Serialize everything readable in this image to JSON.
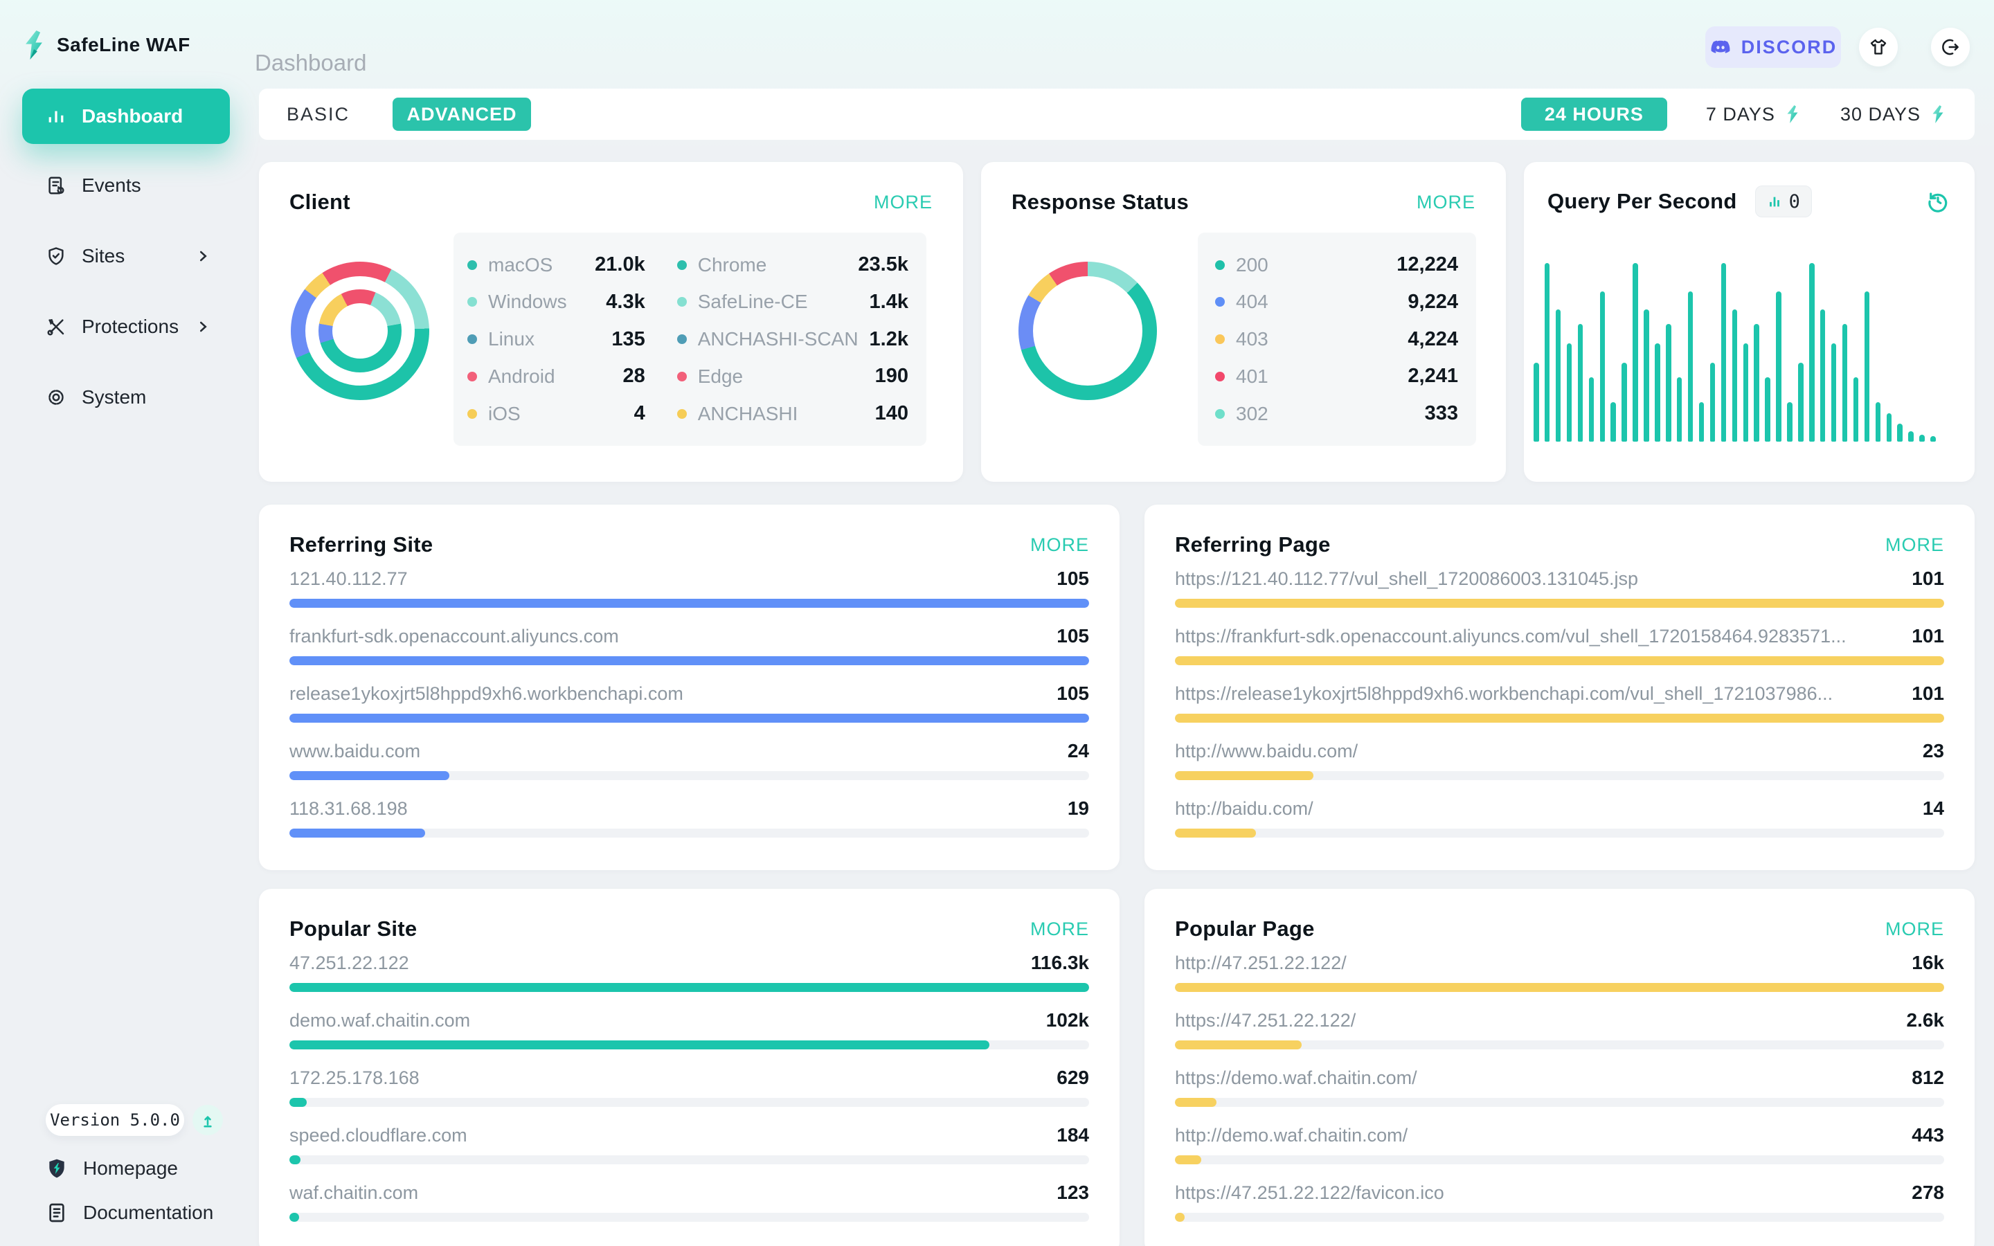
{
  "app": {
    "brand": "SafeLine WAF",
    "breadcrumb": "Dashboard",
    "discord_label": "DISCORD",
    "version": "Version 5.0.0"
  },
  "sidebar": {
    "items": [
      {
        "label": "Dashboard"
      },
      {
        "label": "Events"
      },
      {
        "label": "Sites"
      },
      {
        "label": "Protections"
      },
      {
        "label": "System"
      }
    ],
    "footer": [
      {
        "label": "Homepage"
      },
      {
        "label": "Documentation"
      }
    ]
  },
  "toolbar": {
    "basic": "BASIC",
    "advanced": "ADVANCED",
    "range_24h": "24 HOURS",
    "range_7d": "7 DAYS",
    "range_30d": "30 DAYS"
  },
  "cards": {
    "client": {
      "title": "Client",
      "more": "MORE",
      "os": [
        {
          "label": "macOS",
          "value": "21.0k",
          "color": "#2dbfad"
        },
        {
          "label": "Windows",
          "value": "4.3k",
          "color": "#85e0d1"
        },
        {
          "label": "Linux",
          "value": "135",
          "color": "#4f9db6"
        },
        {
          "label": "Android",
          "value": "28",
          "color": "#f2607a"
        },
        {
          "label": "iOS",
          "value": "4",
          "color": "#f6cd57"
        }
      ],
      "browser": [
        {
          "label": "Chrome",
          "value": "23.5k",
          "color": "#2dbfad"
        },
        {
          "label": "SafeLine-CE",
          "value": "1.4k",
          "color": "#85e0d1"
        },
        {
          "label": "ANCHASHI-SCAN",
          "value": "1.2k",
          "color": "#4f9db6"
        },
        {
          "label": "Edge",
          "value": "190",
          "color": "#f2607a"
        },
        {
          "label": "ANCHASHI",
          "value": "140",
          "color": "#f6cd57"
        }
      ],
      "donut_outer": [
        [
          "#f0516d",
          0,
          27
        ],
        [
          "#8ce0d4",
          27,
          88
        ],
        [
          "#1dc3a9",
          88,
          247
        ],
        [
          "#6b8df5",
          247,
          307
        ],
        [
          "#f8cf5d",
          307,
          327
        ],
        [
          "#f0516d",
          327,
          360
        ]
      ],
      "donut_inner": [
        [
          "#f0516d",
          0,
          22
        ],
        [
          "#8ce0d4",
          22,
          80
        ],
        [
          "#1dc3a9",
          80,
          253
        ],
        [
          "#6b8df5",
          253,
          280
        ],
        [
          "#f8cf5d",
          280,
          333
        ],
        [
          "#f0516d",
          333,
          360
        ]
      ]
    },
    "response_status": {
      "title": "Response Status",
      "more": "MORE",
      "rows": [
        {
          "label": "200",
          "value": "12,224",
          "color": "#1fc0a9"
        },
        {
          "label": "404",
          "value": "9,224",
          "color": "#5f8ff7"
        },
        {
          "label": "403",
          "value": "4,224",
          "color": "#fac75a"
        },
        {
          "label": "401",
          "value": "2,241",
          "color": "#f2486b"
        },
        {
          "label": "302",
          "value": "333",
          "color": "#6fdfca"
        }
      ],
      "donut": [
        [
          "#8ce0d4",
          0,
          46
        ],
        [
          "#1dc3a9",
          46,
          254
        ],
        [
          "#6b8df5",
          254,
          301
        ],
        [
          "#f8cf5d",
          301,
          326
        ],
        [
          "#f0516d",
          326,
          360
        ]
      ]
    },
    "qps": {
      "title": "Query Per Second",
      "counter": "0",
      "bars": [
        44,
        100,
        74,
        55,
        66,
        36,
        84,
        22,
        44,
        100,
        74,
        55,
        66,
        36,
        84,
        22,
        44,
        100,
        74,
        55,
        66,
        36,
        84,
        22,
        44,
        100,
        74,
        55,
        66,
        36,
        84,
        22,
        16,
        10,
        6,
        4,
        3
      ]
    },
    "referring_site": {
      "title": "Referring Site",
      "more": "MORE",
      "bar_color": "#6090f8",
      "rows": [
        {
          "label": "121.40.112.77",
          "value": "105",
          "pct": 100
        },
        {
          "label": "frankfurt-sdk.openaccount.aliyuncs.com",
          "value": "105",
          "pct": 100
        },
        {
          "label": "release1ykoxjrt5l8hppd9xh6.workbenchapi.com",
          "value": "105",
          "pct": 100
        },
        {
          "label": "www.baidu.com",
          "value": "24",
          "pct": 20
        },
        {
          "label": "118.31.68.198",
          "value": "19",
          "pct": 17
        }
      ]
    },
    "referring_page": {
      "title": "Referring Page",
      "more": "MORE",
      "bar_color": "#f7d160",
      "rows": [
        {
          "label": "https://121.40.112.77/vul_shell_1720086003.131045.jsp",
          "value": "101",
          "pct": 100
        },
        {
          "label": "https://frankfurt-sdk.openaccount.aliyuncs.com/vul_shell_1720158464.9283571...",
          "value": "101",
          "pct": 100
        },
        {
          "label": "https://release1ykoxjrt5l8hppd9xh6.workbenchapi.com/vul_shell_1721037986...",
          "value": "101",
          "pct": 100
        },
        {
          "label": "http://www.baidu.com/",
          "value": "23",
          "pct": 18
        },
        {
          "label": "http://baidu.com/",
          "value": "14",
          "pct": 10.5
        }
      ]
    },
    "popular_site": {
      "title": "Popular Site",
      "more": "MORE",
      "bar_color": "#1cc5ac",
      "rows": [
        {
          "label": "47.251.22.122",
          "value": "116.3k",
          "pct": 100
        },
        {
          "label": "demo.waf.chaitin.com",
          "value": "102k",
          "pct": 87.5
        },
        {
          "label": "172.25.178.168",
          "value": "629",
          "pct": 2.2
        },
        {
          "label": "speed.cloudflare.com",
          "value": "184",
          "pct": 1.4
        },
        {
          "label": "waf.chaitin.com",
          "value": "123",
          "pct": 1.2
        }
      ]
    },
    "popular_page": {
      "title": "Popular Page",
      "more": "MORE",
      "bar_color": "#f7d160",
      "rows": [
        {
          "label": "http://47.251.22.122/",
          "value": "16k",
          "pct": 100
        },
        {
          "label": "https://47.251.22.122/",
          "value": "2.6k",
          "pct": 16.5
        },
        {
          "label": "https://demo.waf.chaitin.com/",
          "value": "812",
          "pct": 5.4
        },
        {
          "label": "http://demo.waf.chaitin.com/",
          "value": "443",
          "pct": 3.4
        },
        {
          "label": "https://47.251.22.122/favicon.ico",
          "value": "278",
          "pct": 1.3
        }
      ]
    }
  }
}
